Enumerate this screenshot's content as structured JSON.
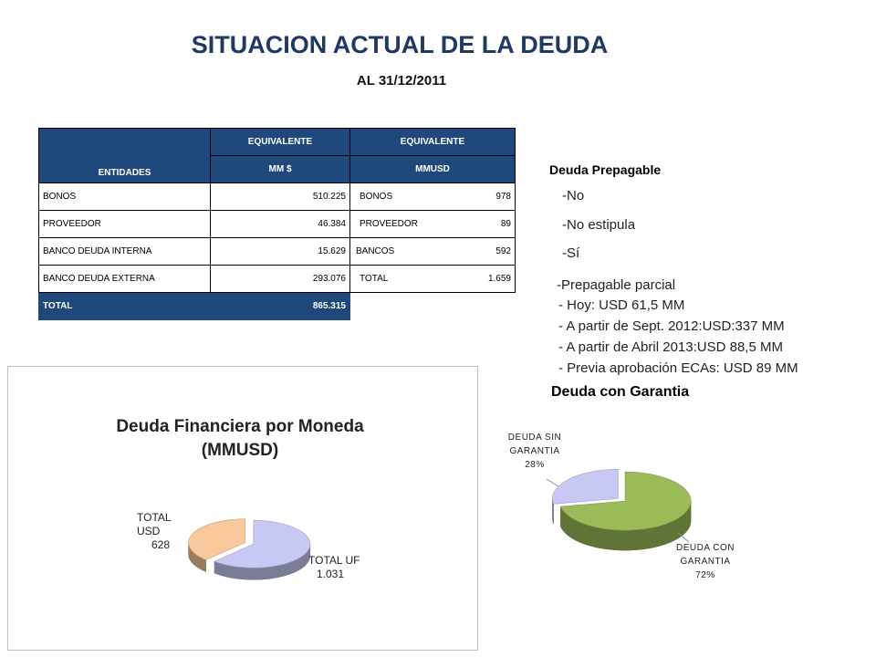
{
  "header": {
    "title": "SITUACION ACTUAL DE LA DEUDA",
    "subtitle": "AL 31/12/2011"
  },
  "table": {
    "header_top": [
      "EQUIVALENTE",
      "EQUIVALENTE"
    ],
    "header_bottom": [
      "ENTIDADES",
      "MM $",
      "MMUSD"
    ],
    "rows": [
      {
        "entity": "BONOS",
        "mm": "510.225",
        "usd_label": "BONOS",
        "usd_value": "978"
      },
      {
        "entity": "PROVEEDOR",
        "mm": "46.384",
        "usd_label": "PROVEEDOR",
        "usd_value": "89"
      },
      {
        "entity": "BANCO DEUDA INTERNA",
        "mm": "15.629",
        "usd_label": "BANCOS",
        "usd_value": "592"
      },
      {
        "entity": "BANCO DEUDA EXTERNA",
        "mm": "293.076",
        "usd_label": "TOTAL",
        "usd_value": "1.659"
      }
    ],
    "total": {
      "label": "TOTAL",
      "mm": "865.315"
    }
  },
  "prepay": {
    "heading": "Deuda Prepagable",
    "options": [
      "-No",
      "-No estipula",
      "-Sí"
    ],
    "partial_heading": "-Prepagable parcial",
    "partial_items": [
      "- Hoy: USD 61,5 MM",
      "- A partir de Sept. 2012:USD:337 MM",
      "- A partir  de Abril 2013:USD 88,5 MM",
      "- Previa aprobación ECAs: USD 89 MM"
    ]
  },
  "guarantee": {
    "heading": "Deuda con Garantia"
  },
  "chart_data": [
    {
      "type": "pie",
      "title": "Deuda Financiera por Moneda (MMUSD)",
      "title_lines": [
        "Deuda Financiera por Moneda",
        "(MMUSD)"
      ],
      "slices": [
        {
          "label": "TOTAL UF",
          "value": 1031,
          "display": "1.031",
          "color": "#c7c9f4"
        },
        {
          "label": "TOTAL USD",
          "value": 628,
          "display": "628",
          "color": "#f9c89c"
        }
      ]
    },
    {
      "type": "pie",
      "title": "",
      "slices": [
        {
          "label_lines": [
            "DEUDA CON",
            "GARANTIA"
          ],
          "value": 72,
          "display": "72%",
          "color": "#9bbb59"
        },
        {
          "label_lines": [
            "DEUDA SIN",
            "GARANTIA"
          ],
          "value": 28,
          "display": "28%",
          "color": "#c7c9f4"
        }
      ]
    }
  ]
}
